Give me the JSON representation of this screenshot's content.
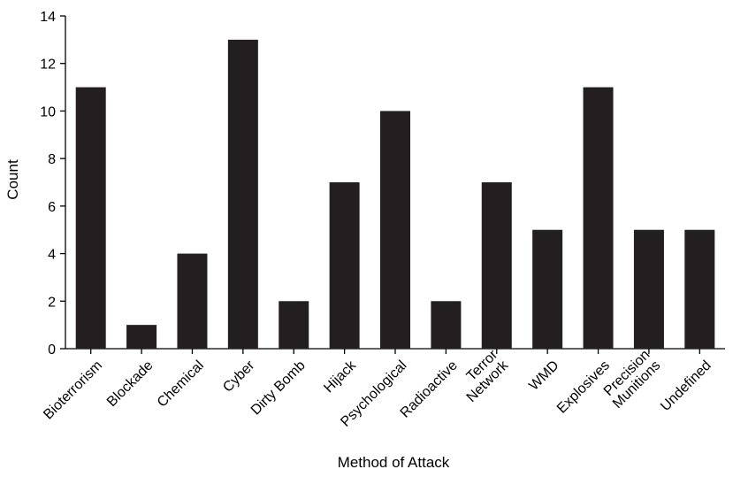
{
  "chart_data": {
    "type": "bar",
    "title": "",
    "xlabel": "Method of Attack",
    "ylabel": "Count",
    "ylim": [
      0,
      14
    ],
    "yticks": [
      0,
      2,
      4,
      6,
      8,
      10,
      12,
      14
    ],
    "grid": false,
    "legend": "none",
    "categories": [
      "Bioterrorism",
      "Blockade",
      "Chemical",
      "Cyber",
      "Dirty Bomb",
      "Hijack",
      "Psychological",
      "Radioactive",
      "Terror Network",
      "WMD",
      "Explosives",
      "Precision Munitions",
      "Undefined"
    ],
    "category_lines": [
      [
        "Bioterrorism"
      ],
      [
        "Blockade"
      ],
      [
        "Chemical"
      ],
      [
        "Cyber"
      ],
      [
        "Dirty Bomb"
      ],
      [
        "Hijack"
      ],
      [
        "Psychological"
      ],
      [
        "Radioactive"
      ],
      [
        "Terror",
        "Network"
      ],
      [
        "WMD"
      ],
      [
        "Explosives"
      ],
      [
        "Precision",
        "Munitions"
      ],
      [
        "Undefined"
      ]
    ],
    "values": [
      11,
      1,
      4,
      13,
      2,
      7,
      10,
      2,
      7,
      5,
      11,
      5,
      5
    ],
    "bar_color": "#231f20"
  }
}
